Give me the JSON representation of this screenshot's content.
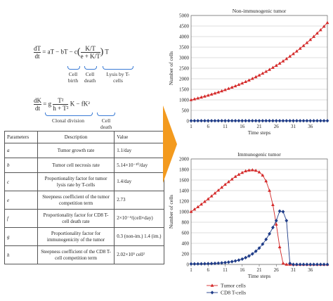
{
  "equations": {
    "eq1_lhs_num": "dT",
    "eq1_lhs_den": "dt",
    "eq1_rhs_a": "= aT − bT − c",
    "eq1_frac_num": "K/T",
    "eq1_frac_den": "e + K/T",
    "eq1_rhs_b": "T",
    "eq1_label_cell_birth": "Cell birth",
    "eq1_label_cell_death": "Cell death",
    "eq1_label_lysis": "Lysis by T-cells",
    "eq2_lhs_num": "dK",
    "eq2_lhs_den": "dt",
    "eq2_rhs_a": "= g",
    "eq2_frac_num": "T²",
    "eq2_frac_den": "h + T²",
    "eq2_rhs_b": "K − fK²",
    "eq2_label_clonal": "Clonal division",
    "eq2_label_cell_death": "Cell death"
  },
  "table": {
    "headers": [
      "Parameters",
      "Description",
      "Value"
    ],
    "rows": [
      {
        "sym": "a",
        "desc": "Tumor growth rate",
        "val": "1.1/day"
      },
      {
        "sym": "b",
        "desc": "Tumor cell necrosis rate",
        "val": "5.14×10⁻¹⁰/day"
      },
      {
        "sym": "c",
        "desc": "Proportionality factor for tumor lysis rate by T-cells",
        "val": "1.4/day"
      },
      {
        "sym": "e",
        "desc": "Steepness coefficient of the tumor competition term",
        "val": "2.73"
      },
      {
        "sym": "f",
        "desc": "Proportionality factor for CD8 T-cell death rate",
        "val": "2×10⁻⁴/(cell×day)"
      },
      {
        "sym": "g",
        "desc": "Proportionality factor for immunogenicity of the tumor",
        "val": "0.3 (non-im.) 1.4 (im.)"
      },
      {
        "sym": "h",
        "desc": "Steepness coefficient of the CD8 T-cell competition term",
        "val": "2.02×10⁵ cell²"
      }
    ]
  },
  "colors": {
    "tumor": "#d42a2a",
    "tcell": "#1f3c88",
    "arrow": "#f39a1e"
  },
  "chart_data": [
    {
      "type": "line",
      "title": "Non-immunogenic tumor",
      "xlabel": "Time steps",
      "ylabel": "Number of cells",
      "ylim": [
        0,
        5000
      ],
      "yticks": [
        0,
        500,
        1000,
        1500,
        2000,
        2500,
        3000,
        3500,
        4000,
        4500,
        5000
      ],
      "xticks": [
        1,
        6,
        11,
        16,
        21,
        26,
        31,
        36
      ],
      "xlim": [
        1,
        41
      ],
      "grid": true,
      "series": [
        {
          "name": "Tumor cells",
          "color": "#d42a2a",
          "marker": "triangle",
          "x": [
            1,
            2,
            3,
            4,
            5,
            6,
            7,
            8,
            9,
            10,
            11,
            12,
            13,
            14,
            15,
            16,
            17,
            18,
            19,
            20,
            21,
            22,
            23,
            24,
            25,
            26,
            27,
            28,
            29,
            30,
            31,
            32,
            33,
            34,
            35,
            36,
            37,
            38,
            39,
            40,
            41
          ],
          "values": [
            1000,
            1040,
            1081,
            1124,
            1169,
            1215,
            1263,
            1313,
            1365,
            1419,
            1475,
            1533,
            1593,
            1656,
            1721,
            1789,
            1859,
            1932,
            2008,
            2087,
            2169,
            2254,
            2342,
            2434,
            2529,
            2628,
            2731,
            2837,
            2948,
            3063,
            3182,
            3306,
            3434,
            3568,
            3706,
            3850,
            3999,
            4154,
            4315,
            4482,
            4655
          ]
        },
        {
          "name": "CD8 T-cells",
          "color": "#1f3c88",
          "marker": "diamond",
          "x": [
            1,
            2,
            3,
            4,
            5,
            6,
            7,
            8,
            9,
            10,
            11,
            12,
            13,
            14,
            15,
            16,
            17,
            18,
            19,
            20,
            21,
            22,
            23,
            24,
            25,
            26,
            27,
            28,
            29,
            30,
            31,
            32,
            33,
            34,
            35,
            36,
            37,
            38,
            39,
            40,
            41
          ],
          "values": [
            10,
            10,
            10,
            10,
            10,
            10,
            10,
            10,
            10,
            10,
            10,
            10,
            10,
            10,
            10,
            10,
            10,
            10,
            10,
            10,
            10,
            10,
            10,
            10,
            10,
            10,
            10,
            10,
            10,
            10,
            10,
            10,
            10,
            10,
            10,
            10,
            10,
            10,
            10,
            10,
            10
          ]
        }
      ]
    },
    {
      "type": "line",
      "title": "Immunogenic tumor",
      "xlabel": "Time steps",
      "ylabel": "Number of cells",
      "ylim": [
        0,
        2000
      ],
      "yticks": [
        0,
        200,
        400,
        600,
        800,
        1000,
        1200,
        1400,
        1600,
        1800,
        2000
      ],
      "xticks": [
        1,
        6,
        11,
        16,
        21,
        26,
        31,
        36
      ],
      "xlim": [
        1,
        41
      ],
      "grid": true,
      "legend": "bottom",
      "series": [
        {
          "name": "Tumor cells",
          "color": "#d42a2a",
          "marker": "triangle",
          "x": [
            1,
            2,
            3,
            4,
            5,
            6,
            7,
            8,
            9,
            10,
            11,
            12,
            13,
            14,
            15,
            16,
            17,
            18,
            19,
            20,
            21,
            22,
            23,
            24,
            25,
            26,
            27,
            28,
            29,
            30,
            31,
            32,
            33,
            34,
            35,
            36,
            37,
            38,
            39,
            40,
            41
          ],
          "values": [
            1000,
            1045,
            1090,
            1140,
            1190,
            1240,
            1295,
            1350,
            1405,
            1460,
            1515,
            1565,
            1615,
            1665,
            1705,
            1740,
            1770,
            1785,
            1790,
            1780,
            1750,
            1690,
            1580,
            1400,
            1130,
            760,
            330,
            20,
            0,
            0,
            0,
            0,
            0,
            0,
            0,
            0,
            0,
            0,
            0,
            0,
            0
          ]
        },
        {
          "name": "CD8 T-cells",
          "color": "#1f3c88",
          "marker": "diamond",
          "x": [
            1,
            2,
            3,
            4,
            5,
            6,
            7,
            8,
            9,
            10,
            11,
            12,
            13,
            14,
            15,
            16,
            17,
            18,
            19,
            20,
            21,
            22,
            23,
            24,
            25,
            26,
            27,
            28,
            29,
            30,
            31,
            32,
            33,
            34,
            35,
            36,
            37,
            38,
            39,
            40,
            41
          ],
          "values": [
            10,
            10,
            11,
            12,
            13,
            15,
            17,
            20,
            24,
            29,
            35,
            43,
            53,
            66,
            82,
            102,
            128,
            160,
            200,
            250,
            310,
            385,
            475,
            580,
            700,
            830,
            1010,
            1000,
            830,
            20,
            0,
            0,
            0,
            0,
            0,
            0,
            0,
            0,
            0,
            0,
            0
          ]
        }
      ]
    }
  ]
}
